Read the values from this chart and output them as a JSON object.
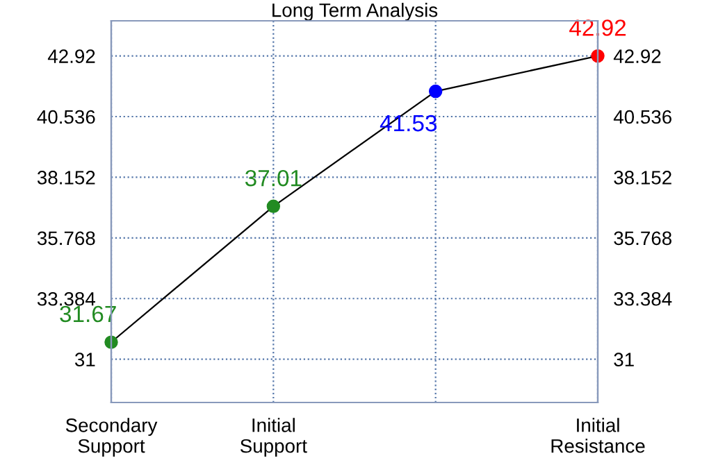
{
  "chart_data": {
    "type": "line",
    "title": "Long Term Analysis",
    "categories": [
      "Secondary\nSupport",
      "Initial\nSupport",
      null,
      "Initial\nResistance"
    ],
    "series": [
      {
        "color": "#000000",
        "colors": [
          "#228b22",
          "#228b22",
          "#0000ff",
          "#ff0000"
        ],
        "values": [
          31.67,
          37.01,
          41.53,
          42.92
        ]
      }
    ],
    "ylim": [
      29.3,
      44.3
    ],
    "yticks": [
      31,
      33.384,
      35.768,
      38.152,
      40.536,
      42.92
    ],
    "y2lim": [
      29.3,
      44.3
    ],
    "y2ticks": [
      31,
      33.384,
      35.768,
      38.152,
      40.536,
      42.92
    ],
    "grid": true,
    "marker": "circle",
    "line_style": "solid",
    "data_labels": true
  }
}
